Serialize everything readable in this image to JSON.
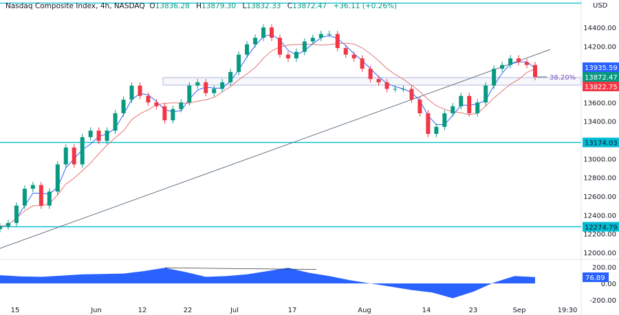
{
  "header": {
    "symbol": "Nasdaq Composite Index, 4h, NASDAQ",
    "open_label": "O",
    "open": "13836.28",
    "high_label": "H",
    "high": "13879.30",
    "low_label": "L",
    "low": "13832.33",
    "close_label": "C",
    "close": "13872.47",
    "change": "+36.11 (+0.26%)"
  },
  "currency": "USD",
  "colors": {
    "up": "#089981",
    "down": "#f23645",
    "ma_fast": "#2962ff",
    "ma_slow": "#e57373",
    "hline": "#00bcd4",
    "trend": "#5d6d7e",
    "osc": "#2962ff"
  },
  "chart_data": [
    {
      "type": "candlestick",
      "title": "Nasdaq Composite Index, 4h, NASDAQ",
      "ylim": [
        11900,
        14700
      ],
      "y_ticks": [
        "14400.00",
        "14200.00",
        "13600.00",
        "13400.00",
        "13000.00",
        "12800.00",
        "12600.00",
        "12400.00",
        "12200.00",
        "12000.00"
      ],
      "y_tick_values": [
        14400,
        14200,
        13600,
        13400,
        13000,
        12800,
        12600,
        12400,
        12200,
        12000
      ],
      "x_ticks": [
        "15",
        "Jun",
        "12",
        "22",
        "Jul",
        "17",
        "Aug",
        "14",
        "23",
        "Sep",
        "19:30"
      ],
      "closes": [
        12280,
        12315,
        12500,
        12680,
        12720,
        12500,
        12650,
        12940,
        13120,
        12940,
        13230,
        13300,
        13190,
        13300,
        13485,
        13630,
        13780,
        13670,
        13600,
        13560,
        13410,
        13530,
        13600,
        13780,
        13815,
        13700,
        13745,
        13815,
        13925,
        14110,
        14220,
        14290,
        14400,
        14290,
        14110,
        14070,
        14140,
        14250,
        14290,
        14330,
        14330,
        14180,
        14110,
        14070,
        13960,
        13850,
        13815,
        13745,
        13745,
        13745,
        13630,
        13485,
        13265,
        13340,
        13485,
        13560,
        13670,
        13485,
        13600,
        13780,
        13960,
        14000,
        14070,
        14030,
        14000,
        13872
      ],
      "price_labels": [
        {
          "text": "13935.59",
          "value": 13935.59,
          "color": "#2962ff"
        },
        {
          "text": "13872.47",
          "value": 13872.47,
          "color": "#089981"
        },
        {
          "text": "13822.75",
          "value": 13822.75,
          "color": "#f23645"
        }
      ],
      "hlines": [
        {
          "text": "13174.03",
          "value": 13174.03
        },
        {
          "text": "12274.79",
          "value": 12274.79
        },
        {
          "value": 14660
        }
      ],
      "trendline": [
        12045,
        14165
      ],
      "fib_zone": {
        "label": "38.20%",
        "top": 13865,
        "bottom": 13785
      }
    },
    {
      "type": "area",
      "y_ticks": [
        "200.00",
        "0.00",
        "-200.00"
      ],
      "y_tick_values": [
        200,
        0,
        -200
      ],
      "values": [
        100,
        85,
        80,
        95,
        110,
        115,
        120,
        150,
        190,
        140,
        80,
        90,
        110,
        150,
        190,
        130,
        90,
        40,
        0,
        -40,
        -80,
        -110,
        -180,
        -100,
        10,
        90,
        77
      ],
      "last_label": "76.89",
      "divergence_line": [
        190,
        170
      ]
    }
  ]
}
